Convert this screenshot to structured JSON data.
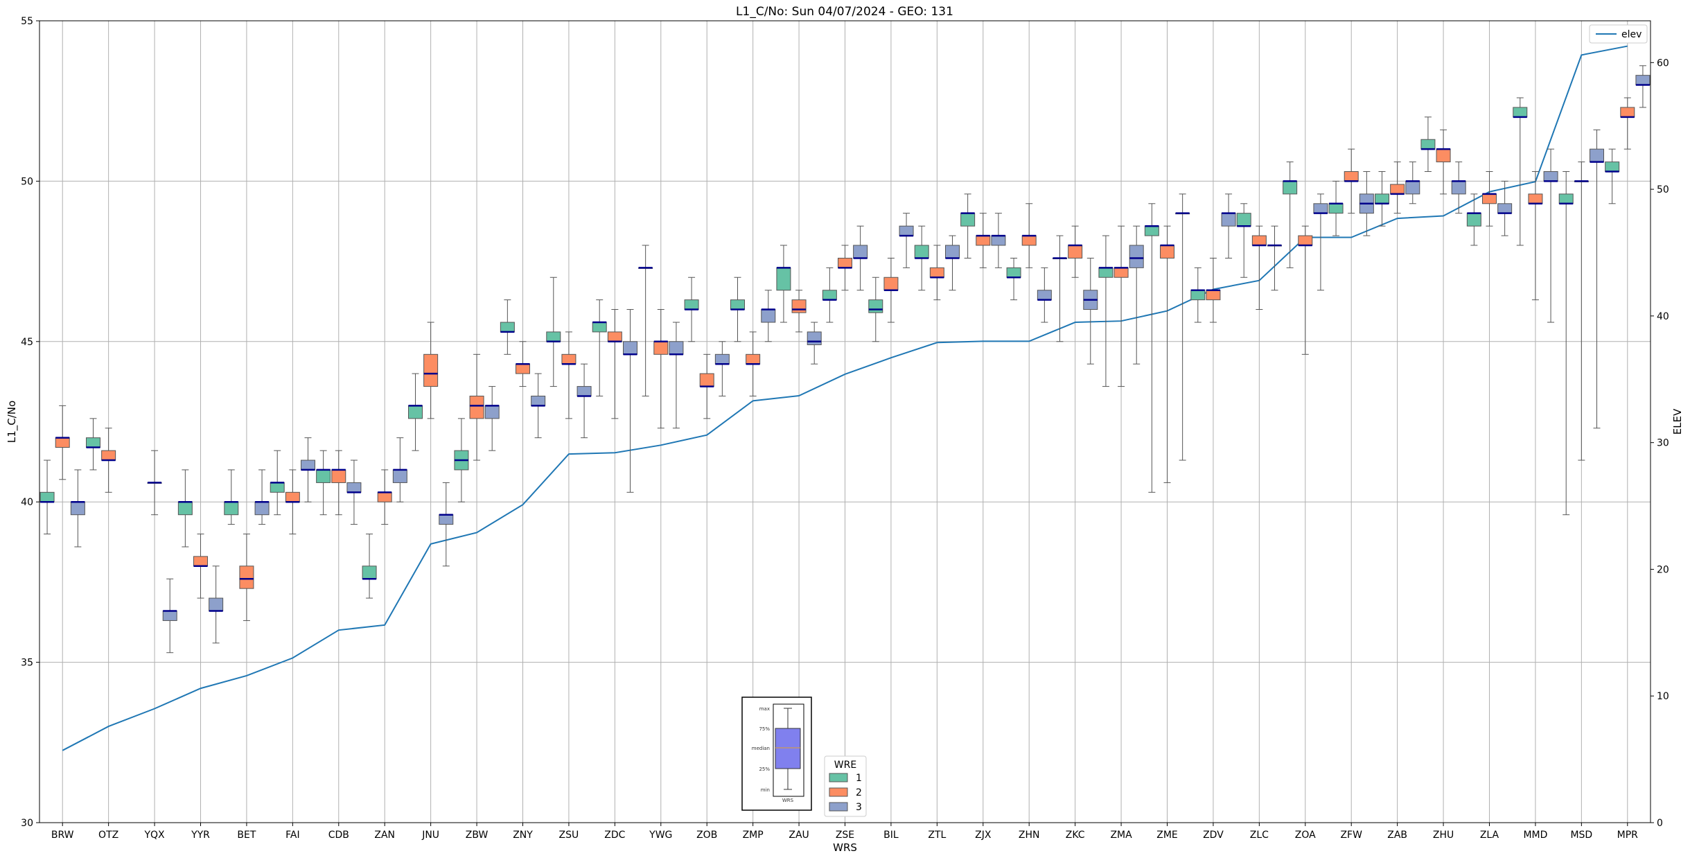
{
  "chart_data": {
    "type": "box",
    "title": "L1_C/No: Sun 04/07/2024 - GEO: 131",
    "xlabel": "WRS",
    "ylabel": "L1_C/No",
    "y2label": "ELEV",
    "ylim": [
      30,
      55
    ],
    "y2lim": [
      0,
      63.3
    ],
    "yticks": [
      30,
      35,
      40,
      45,
      50,
      55
    ],
    "y2ticks": [
      0,
      10,
      20,
      30,
      40,
      50,
      60
    ],
    "grid": true,
    "categories": [
      "BRW",
      "OTZ",
      "YQX",
      "YYR",
      "BET",
      "FAI",
      "CDB",
      "ZAN",
      "JNU",
      "ZBW",
      "ZNY",
      "ZSU",
      "ZDC",
      "YWG",
      "ZOB",
      "ZMP",
      "ZAU",
      "ZSE",
      "BIL",
      "ZTL",
      "ZJX",
      "ZHN",
      "ZKC",
      "ZMA",
      "ZME",
      "ZDV",
      "ZLC",
      "ZOA",
      "ZFW",
      "ZAB",
      "ZHU",
      "ZLA",
      "MMD",
      "MSD",
      "MPR"
    ],
    "wre_legend": {
      "title": "WRE",
      "entries": [
        {
          "label": "1",
          "color": "#66c2a5"
        },
        {
          "label": "2",
          "color": "#fc8d62"
        },
        {
          "label": "3",
          "color": "#8da0cb"
        }
      ],
      "placement": "bottom-center"
    },
    "elev_legend": {
      "label": "elev",
      "color": "#1f77b4",
      "placement": "top-right"
    },
    "box_key": {
      "labels": [
        "max",
        "75%",
        "median",
        "25%",
        "min"
      ],
      "xlabel": "WRS",
      "color": "#8080ee"
    },
    "boxes": [
      {
        "station": "BRW",
        "wre": 1,
        "min": 39.0,
        "q1": 40.0,
        "median": 40.0,
        "q3": 40.3,
        "max": 41.3
      },
      {
        "station": "BRW",
        "wre": 2,
        "min": 40.7,
        "q1": 41.7,
        "median": 42.0,
        "q3": 42.0,
        "max": 43.0
      },
      {
        "station": "BRW",
        "wre": 3,
        "min": 38.6,
        "q1": 39.6,
        "median": 40.0,
        "q3": 40.0,
        "max": 41.0
      },
      {
        "station": "OTZ",
        "wre": 1,
        "min": 41.0,
        "q1": 41.7,
        "median": 41.7,
        "q3": 42.0,
        "max": 42.6
      },
      {
        "station": "OTZ",
        "wre": 2,
        "min": 40.3,
        "q1": 41.3,
        "median": 41.3,
        "q3": 41.6,
        "max": 42.3
      },
      {
        "station": "YQX",
        "wre": 2,
        "min": 39.6,
        "q1": 40.6,
        "median": 40.6,
        "q3": 40.6,
        "max": 41.6
      },
      {
        "station": "YQX",
        "wre": 3,
        "min": 35.3,
        "q1": 36.3,
        "median": 36.6,
        "q3": 36.6,
        "max": 37.6
      },
      {
        "station": "YYR",
        "wre": 1,
        "min": 38.6,
        "q1": 39.6,
        "median": 40.0,
        "q3": 40.0,
        "max": 41.0
      },
      {
        "station": "YYR",
        "wre": 2,
        "min": 37.0,
        "q1": 38.0,
        "median": 38.0,
        "q3": 38.3,
        "max": 39.0
      },
      {
        "station": "YYR",
        "wre": 3,
        "min": 35.6,
        "q1": 36.6,
        "median": 36.6,
        "q3": 37.0,
        "max": 38.0
      },
      {
        "station": "BET",
        "wre": 1,
        "min": 39.3,
        "q1": 39.6,
        "median": 40.0,
        "q3": 40.0,
        "max": 41.0
      },
      {
        "station": "BET",
        "wre": 2,
        "min": 36.3,
        "q1": 37.3,
        "median": 37.6,
        "q3": 38.0,
        "max": 39.0
      },
      {
        "station": "BET",
        "wre": 3,
        "min": 39.3,
        "q1": 39.6,
        "median": 40.0,
        "q3": 40.0,
        "max": 41.0
      },
      {
        "station": "FAI",
        "wre": 1,
        "min": 39.6,
        "q1": 40.3,
        "median": 40.6,
        "q3": 40.6,
        "max": 41.6
      },
      {
        "station": "FAI",
        "wre": 2,
        "min": 39.0,
        "q1": 40.0,
        "median": 40.0,
        "q3": 40.3,
        "max": 41.0
      },
      {
        "station": "FAI",
        "wre": 3,
        "min": 40.0,
        "q1": 41.0,
        "median": 41.0,
        "q3": 41.3,
        "max": 42.0
      },
      {
        "station": "CDB",
        "wre": 1,
        "min": 39.6,
        "q1": 40.6,
        "median": 41.0,
        "q3": 41.0,
        "max": 41.6
      },
      {
        "station": "CDB",
        "wre": 2,
        "min": 39.6,
        "q1": 40.6,
        "median": 41.0,
        "q3": 41.0,
        "max": 41.6
      },
      {
        "station": "CDB",
        "wre": 3,
        "min": 39.3,
        "q1": 40.3,
        "median": 40.3,
        "q3": 40.6,
        "max": 41.3
      },
      {
        "station": "ZAN",
        "wre": 1,
        "min": 37.0,
        "q1": 37.6,
        "median": 37.6,
        "q3": 38.0,
        "max": 39.0
      },
      {
        "station": "ZAN",
        "wre": 2,
        "min": 39.3,
        "q1": 40.0,
        "median": 40.3,
        "q3": 40.3,
        "max": 41.0
      },
      {
        "station": "ZAN",
        "wre": 3,
        "min": 40.0,
        "q1": 40.6,
        "median": 41.0,
        "q3": 41.0,
        "max": 42.0
      },
      {
        "station": "JNU",
        "wre": 1,
        "min": 41.6,
        "q1": 42.6,
        "median": 43.0,
        "q3": 43.0,
        "max": 44.0
      },
      {
        "station": "JNU",
        "wre": 2,
        "min": 42.6,
        "q1": 43.6,
        "median": 44.0,
        "q3": 44.6,
        "max": 45.6
      },
      {
        "station": "JNU",
        "wre": 3,
        "min": 38.0,
        "q1": 39.3,
        "median": 39.6,
        "q3": 39.6,
        "max": 40.6
      },
      {
        "station": "ZBW",
        "wre": 1,
        "min": 40.0,
        "q1": 41.0,
        "median": 41.3,
        "q3": 41.6,
        "max": 42.6
      },
      {
        "station": "ZBW",
        "wre": 2,
        "min": 41.3,
        "q1": 42.6,
        "median": 43.0,
        "q3": 43.3,
        "max": 44.6
      },
      {
        "station": "ZBW",
        "wre": 3,
        "min": 41.6,
        "q1": 42.6,
        "median": 43.0,
        "q3": 43.0,
        "max": 43.6
      },
      {
        "station": "ZNY",
        "wre": 1,
        "min": 44.6,
        "q1": 45.3,
        "median": 45.3,
        "q3": 45.6,
        "max": 46.3
      },
      {
        "station": "ZNY",
        "wre": 2,
        "min": 43.6,
        "q1": 44.0,
        "median": 44.3,
        "q3": 44.3,
        "max": 45.0
      },
      {
        "station": "ZNY",
        "wre": 3,
        "min": 42.0,
        "q1": 43.0,
        "median": 43.0,
        "q3": 43.3,
        "max": 44.0
      },
      {
        "station": "ZSU",
        "wre": 1,
        "min": 43.6,
        "q1": 45.0,
        "median": 45.0,
        "q3": 45.3,
        "max": 47.0
      },
      {
        "station": "ZSU",
        "wre": 2,
        "min": 42.6,
        "q1": 44.3,
        "median": 44.3,
        "q3": 44.6,
        "max": 45.3
      },
      {
        "station": "ZSU",
        "wre": 3,
        "min": 42.0,
        "q1": 43.3,
        "median": 43.3,
        "q3": 43.6,
        "max": 44.3
      },
      {
        "station": "ZDC",
        "wre": 1,
        "min": 43.3,
        "q1": 45.3,
        "median": 45.6,
        "q3": 45.6,
        "max": 46.3
      },
      {
        "station": "ZDC",
        "wre": 2,
        "min": 42.6,
        "q1": 45.0,
        "median": 45.0,
        "q3": 45.3,
        "max": 46.0
      },
      {
        "station": "ZDC",
        "wre": 3,
        "min": 40.3,
        "q1": 44.6,
        "median": 44.6,
        "q3": 45.0,
        "max": 46.0
      },
      {
        "station": "YWG",
        "wre": 1,
        "min": 43.3,
        "q1": 47.3,
        "median": 47.3,
        "q3": 47.3,
        "max": 48.0
      },
      {
        "station": "YWG",
        "wre": 2,
        "min": 42.3,
        "q1": 44.6,
        "median": 45.0,
        "q3": 45.0,
        "max": 46.0
      },
      {
        "station": "YWG",
        "wre": 3,
        "min": 42.3,
        "q1": 44.6,
        "median": 44.6,
        "q3": 45.0,
        "max": 45.6
      },
      {
        "station": "ZOB",
        "wre": 1,
        "min": 45.0,
        "q1": 46.0,
        "median": 46.0,
        "q3": 46.3,
        "max": 47.0
      },
      {
        "station": "ZOB",
        "wre": 2,
        "min": 42.6,
        "q1": 43.6,
        "median": 43.6,
        "q3": 44.0,
        "max": 44.6
      },
      {
        "station": "ZOB",
        "wre": 3,
        "min": 43.3,
        "q1": 44.3,
        "median": 44.3,
        "q3": 44.6,
        "max": 45.0
      },
      {
        "station": "ZMP",
        "wre": 1,
        "min": 45.0,
        "q1": 46.0,
        "median": 46.0,
        "q3": 46.3,
        "max": 47.0
      },
      {
        "station": "ZMP",
        "wre": 2,
        "min": 43.3,
        "q1": 44.3,
        "median": 44.3,
        "q3": 44.6,
        "max": 45.3
      },
      {
        "station": "ZMP",
        "wre": 3,
        "min": 45.0,
        "q1": 45.6,
        "median": 46.0,
        "q3": 46.0,
        "max": 46.6
      },
      {
        "station": "ZAU",
        "wre": 1,
        "min": 45.6,
        "q1": 46.6,
        "median": 47.3,
        "q3": 47.3,
        "max": 48.0
      },
      {
        "station": "ZAU",
        "wre": 2,
        "min": 45.3,
        "q1": 45.9,
        "median": 46.0,
        "q3": 46.3,
        "max": 46.6
      },
      {
        "station": "ZAU",
        "wre": 3,
        "min": 44.3,
        "q1": 44.9,
        "median": 45.0,
        "q3": 45.3,
        "max": 45.6
      },
      {
        "station": "ZSE",
        "wre": 1,
        "min": 45.6,
        "q1": 46.3,
        "median": 46.3,
        "q3": 46.6,
        "max": 47.3
      },
      {
        "station": "ZSE",
        "wre": 2,
        "min": 46.6,
        "q1": 47.3,
        "median": 47.3,
        "q3": 47.6,
        "max": 48.0
      },
      {
        "station": "ZSE",
        "wre": 3,
        "min": 46.6,
        "q1": 47.6,
        "median": 47.6,
        "q3": 48.0,
        "max": 48.6
      },
      {
        "station": "BIL",
        "wre": 1,
        "min": 45.0,
        "q1": 45.9,
        "median": 46.0,
        "q3": 46.3,
        "max": 47.0
      },
      {
        "station": "BIL",
        "wre": 2,
        "min": 45.6,
        "q1": 46.6,
        "median": 46.6,
        "q3": 47.0,
        "max": 47.6
      },
      {
        "station": "BIL",
        "wre": 3,
        "min": 47.3,
        "q1": 48.3,
        "median": 48.3,
        "q3": 48.6,
        "max": 49.0
      },
      {
        "station": "ZTL",
        "wre": 1,
        "min": 46.6,
        "q1": 47.6,
        "median": 47.6,
        "q3": 48.0,
        "max": 48.6
      },
      {
        "station": "ZTL",
        "wre": 2,
        "min": 46.3,
        "q1": 47.0,
        "median": 47.0,
        "q3": 47.3,
        "max": 48.0
      },
      {
        "station": "ZTL",
        "wre": 3,
        "min": 46.6,
        "q1": 47.6,
        "median": 47.6,
        "q3": 48.0,
        "max": 48.3
      },
      {
        "station": "ZJX",
        "wre": 1,
        "min": 47.6,
        "q1": 48.6,
        "median": 49.0,
        "q3": 49.0,
        "max": 49.6
      },
      {
        "station": "ZJX",
        "wre": 2,
        "min": 47.3,
        "q1": 48.0,
        "median": 48.3,
        "q3": 48.3,
        "max": 49.0
      },
      {
        "station": "ZJX",
        "wre": 3,
        "min": 47.3,
        "q1": 48.0,
        "median": 48.3,
        "q3": 48.3,
        "max": 49.0
      },
      {
        "station": "ZHN",
        "wre": 1,
        "min": 46.3,
        "q1": 47.0,
        "median": 47.0,
        "q3": 47.3,
        "max": 47.6
      },
      {
        "station": "ZHN",
        "wre": 2,
        "min": 47.3,
        "q1": 48.0,
        "median": 48.3,
        "q3": 48.3,
        "max": 49.3
      },
      {
        "station": "ZHN",
        "wre": 3,
        "min": 45.6,
        "q1": 46.3,
        "median": 46.3,
        "q3": 46.6,
        "max": 47.3
      },
      {
        "station": "ZKC",
        "wre": 1,
        "min": 45.0,
        "q1": 47.6,
        "median": 47.6,
        "q3": 47.6,
        "max": 48.3
      },
      {
        "station": "ZKC",
        "wre": 2,
        "min": 47.0,
        "q1": 47.6,
        "median": 48.0,
        "q3": 48.0,
        "max": 48.6
      },
      {
        "station": "ZKC",
        "wre": 3,
        "min": 44.3,
        "q1": 46.0,
        "median": 46.3,
        "q3": 46.6,
        "max": 47.6
      },
      {
        "station": "ZMA",
        "wre": 1,
        "min": 43.6,
        "q1": 47.0,
        "median": 47.3,
        "q3": 47.3,
        "max": 48.3
      },
      {
        "station": "ZMA",
        "wre": 2,
        "min": 43.6,
        "q1": 47.0,
        "median": 47.3,
        "q3": 47.3,
        "max": 48.6
      },
      {
        "station": "ZMA",
        "wre": 3,
        "min": 44.3,
        "q1": 47.3,
        "median": 47.6,
        "q3": 48.0,
        "max": 48.6
      },
      {
        "station": "ZME",
        "wre": 1,
        "min": 40.3,
        "q1": 48.3,
        "median": 48.6,
        "q3": 48.6,
        "max": 49.3
      },
      {
        "station": "ZME",
        "wre": 2,
        "min": 40.6,
        "q1": 47.6,
        "median": 48.0,
        "q3": 48.0,
        "max": 48.6
      },
      {
        "station": "ZME",
        "wre": 3,
        "min": 41.3,
        "q1": 49.0,
        "median": 49.0,
        "q3": 49.0,
        "max": 49.6
      },
      {
        "station": "ZDV",
        "wre": 1,
        "min": 45.6,
        "q1": 46.3,
        "median": 46.6,
        "q3": 46.6,
        "max": 47.3
      },
      {
        "station": "ZDV",
        "wre": 2,
        "min": 45.6,
        "q1": 46.3,
        "median": 46.6,
        "q3": 46.6,
        "max": 47.6
      },
      {
        "station": "ZDV",
        "wre": 3,
        "min": 47.6,
        "q1": 48.6,
        "median": 49.0,
        "q3": 49.0,
        "max": 49.6
      },
      {
        "station": "ZLC",
        "wre": 1,
        "min": 47.0,
        "q1": 48.6,
        "median": 48.6,
        "q3": 49.0,
        "max": 49.3
      },
      {
        "station": "ZLC",
        "wre": 2,
        "min": 46.0,
        "q1": 48.0,
        "median": 48.0,
        "q3": 48.3,
        "max": 48.6
      },
      {
        "station": "ZLC",
        "wre": 3,
        "min": 46.6,
        "q1": 48.0,
        "median": 48.0,
        "q3": 48.0,
        "max": 48.6
      },
      {
        "station": "ZOA",
        "wre": 1,
        "min": 47.3,
        "q1": 49.6,
        "median": 50.0,
        "q3": 50.0,
        "max": 50.6
      },
      {
        "station": "ZOA",
        "wre": 2,
        "min": 44.6,
        "q1": 48.0,
        "median": 48.0,
        "q3": 48.3,
        "max": 48.6
      },
      {
        "station": "ZOA",
        "wre": 3,
        "min": 46.6,
        "q1": 49.0,
        "median": 49.0,
        "q3": 49.3,
        "max": 49.6
      },
      {
        "station": "ZFW",
        "wre": 1,
        "min": 48.3,
        "q1": 49.0,
        "median": 49.3,
        "q3": 49.3,
        "max": 50.0
      },
      {
        "station": "ZFW",
        "wre": 2,
        "min": 49.0,
        "q1": 50.0,
        "median": 50.0,
        "q3": 50.3,
        "max": 51.0
      },
      {
        "station": "ZFW",
        "wre": 3,
        "min": 48.3,
        "q1": 49.0,
        "median": 49.3,
        "q3": 49.6,
        "max": 50.3
      },
      {
        "station": "ZAB",
        "wre": 1,
        "min": 48.6,
        "q1": 49.3,
        "median": 49.3,
        "q3": 49.6,
        "max": 50.3
      },
      {
        "station": "ZAB",
        "wre": 2,
        "min": 49.0,
        "q1": 49.6,
        "median": 49.6,
        "q3": 49.9,
        "max": 50.6
      },
      {
        "station": "ZAB",
        "wre": 3,
        "min": 49.3,
        "q1": 49.6,
        "median": 50.0,
        "q3": 50.0,
        "max": 50.6
      },
      {
        "station": "ZHU",
        "wre": 1,
        "min": 50.3,
        "q1": 51.0,
        "median": 51.0,
        "q3": 51.3,
        "max": 52.0
      },
      {
        "station": "ZHU",
        "wre": 2,
        "min": 49.6,
        "q1": 50.6,
        "median": 51.0,
        "q3": 51.0,
        "max": 51.6
      },
      {
        "station": "ZHU",
        "wre": 3,
        "min": 49.0,
        "q1": 49.6,
        "median": 50.0,
        "q3": 50.0,
        "max": 50.6
      },
      {
        "station": "ZLA",
        "wre": 1,
        "min": 48.0,
        "q1": 48.6,
        "median": 49.0,
        "q3": 49.0,
        "max": 49.6
      },
      {
        "station": "ZLA",
        "wre": 2,
        "min": 48.6,
        "q1": 49.3,
        "median": 49.6,
        "q3": 49.6,
        "max": 50.3
      },
      {
        "station": "ZLA",
        "wre": 3,
        "min": 48.3,
        "q1": 49.0,
        "median": 49.0,
        "q3": 49.3,
        "max": 50.0
      },
      {
        "station": "MMD",
        "wre": 1,
        "min": 48.0,
        "q1": 52.0,
        "median": 52.0,
        "q3": 52.3,
        "max": 52.6
      },
      {
        "station": "MMD",
        "wre": 2,
        "min": 46.3,
        "q1": 49.3,
        "median": 49.3,
        "q3": 49.6,
        "max": 50.3
      },
      {
        "station": "MMD",
        "wre": 3,
        "min": 45.6,
        "q1": 50.0,
        "median": 50.0,
        "q3": 50.3,
        "max": 51.0
      },
      {
        "station": "MSD",
        "wre": 1,
        "min": 39.6,
        "q1": 49.3,
        "median": 49.3,
        "q3": 49.6,
        "max": 50.3
      },
      {
        "station": "MSD",
        "wre": 2,
        "min": 41.3,
        "q1": 50.0,
        "median": 50.0,
        "q3": 50.0,
        "max": 50.6
      },
      {
        "station": "MSD",
        "wre": 3,
        "min": 42.3,
        "q1": 50.6,
        "median": 50.6,
        "q3": 51.0,
        "max": 51.6
      },
      {
        "station": "MPR",
        "wre": 1,
        "min": 49.3,
        "q1": 50.3,
        "median": 50.3,
        "q3": 50.6,
        "max": 51.0
      },
      {
        "station": "MPR",
        "wre": 2,
        "min": 51.0,
        "q1": 52.0,
        "median": 52.0,
        "q3": 52.3,
        "max": 52.6
      },
      {
        "station": "MPR",
        "wre": 3,
        "min": 52.3,
        "q1": 53.0,
        "median": 53.0,
        "q3": 53.3,
        "max": 53.6
      }
    ],
    "elev_series": {
      "name": "elev",
      "values": [
        5.7,
        7.6,
        9.0,
        10.6,
        11.6,
        13.0,
        15.2,
        15.6,
        22.0,
        22.9,
        25.1,
        29.1,
        29.2,
        29.8,
        30.6,
        33.3,
        33.7,
        35.4,
        36.7,
        37.9,
        38.0,
        38.0,
        39.5,
        39.6,
        40.4,
        42.1,
        42.8,
        46.2,
        46.2,
        47.7,
        47.9,
        49.8,
        50.6,
        60.6,
        61.3
      ]
    }
  }
}
